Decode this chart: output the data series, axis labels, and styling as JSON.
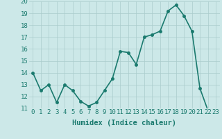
{
  "x": [
    0,
    1,
    2,
    3,
    4,
    5,
    6,
    7,
    8,
    9,
    10,
    11,
    12,
    13,
    14,
    15,
    16,
    17,
    18,
    19,
    20,
    21,
    22,
    23
  ],
  "y": [
    14.0,
    12.5,
    13.0,
    11.5,
    13.0,
    12.5,
    11.6,
    11.2,
    11.5,
    12.5,
    13.5,
    15.8,
    15.7,
    14.7,
    17.0,
    17.2,
    17.5,
    19.2,
    19.7,
    18.8,
    17.5,
    12.7,
    10.85,
    10.75
  ],
  "line_color": "#1a7a6e",
  "marker_color": "#1a7a6e",
  "bg_color": "#cce8e8",
  "grid_color": "#aacccc",
  "xlabel": "Humidex (Indice chaleur)",
  "xlim": [
    -0.5,
    23.5
  ],
  "ylim": [
    11.0,
    20.0
  ],
  "yticks": [
    11,
    12,
    13,
    14,
    15,
    16,
    17,
    18,
    19,
    20
  ],
  "xticks": [
    0,
    1,
    2,
    3,
    4,
    5,
    6,
    7,
    8,
    9,
    10,
    11,
    12,
    13,
    14,
    15,
    16,
    17,
    18,
    19,
    20,
    21,
    22,
    23
  ],
  "xlabel_fontsize": 7.5,
  "tick_fontsize": 6.5,
  "line_width": 1.2,
  "marker_size": 2.5
}
